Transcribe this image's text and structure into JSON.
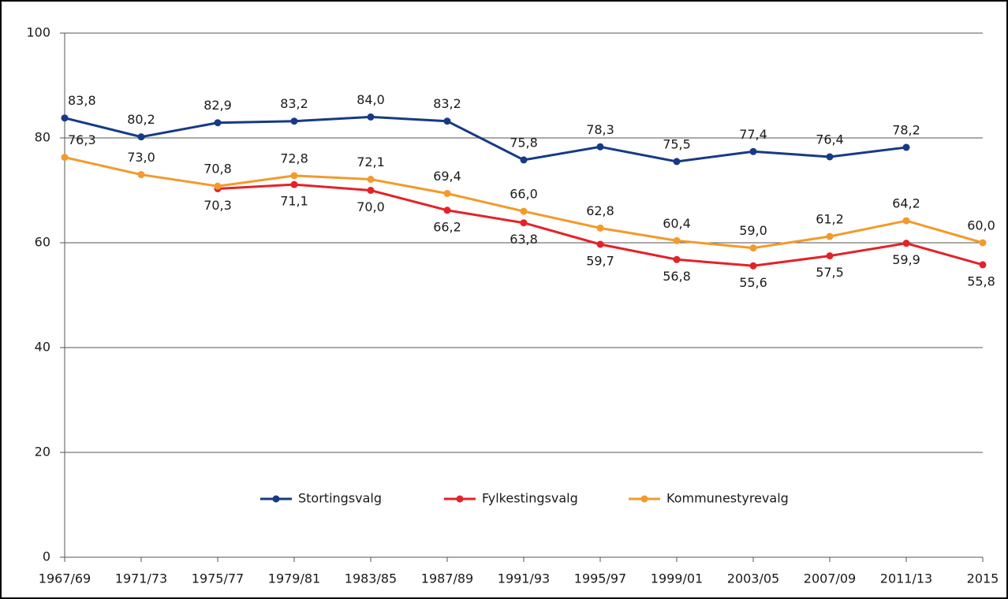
{
  "chart_data": {
    "type": "line",
    "categories": [
      "1967/69",
      "1971/73",
      "1975/77",
      "1979/81",
      "1983/85",
      "1987/89",
      "1991/93",
      "1995/97",
      "1999/01",
      "2003/05",
      "2007/09",
      "2011/13",
      "2015"
    ],
    "series": [
      {
        "name": "Stortingsvalg",
        "color": "#163a86",
        "label_side": "above",
        "values": [
          83.8,
          80.2,
          82.9,
          83.2,
          84.0,
          83.2,
          75.8,
          78.3,
          75.5,
          77.4,
          76.4,
          78.2,
          null
        ],
        "value_labels": [
          "83,8",
          "80,2",
          "82,9",
          "83,2",
          "84,0",
          "83,2",
          "75,8",
          "78,3",
          "75,5",
          "77,4",
          "76,4",
          "78,2",
          null
        ]
      },
      {
        "name": "Fylkestingsvalg",
        "color": "#e42229",
        "label_side": "below",
        "values": [
          null,
          null,
          70.3,
          71.1,
          70.0,
          66.2,
          63.8,
          59.7,
          56.8,
          55.6,
          57.5,
          59.9,
          55.8
        ],
        "value_labels": [
          null,
          null,
          "70,3",
          "71,1",
          "70,0",
          "66,2",
          "63,8",
          "59,7",
          "56,8",
          "55,6",
          "57,5",
          "59,9",
          "55,8"
        ]
      },
      {
        "name": "Kommunestyrevalg",
        "color": "#f39a2c",
        "label_side": "above",
        "values": [
          76.3,
          73.0,
          70.8,
          72.8,
          72.1,
          69.4,
          66.0,
          62.8,
          60.4,
          59.0,
          61.2,
          64.2,
          60.0
        ],
        "value_labels": [
          "76,3",
          "73,0",
          "70,8",
          "72,8",
          "72,1",
          "69,4",
          "66,0",
          "62,8",
          "60,4",
          "59,0",
          "61,2",
          "64,2",
          "60,0"
        ]
      }
    ],
    "ylim": [
      0,
      100
    ],
    "yticks": [
      0,
      20,
      40,
      60,
      80,
      100
    ],
    "grid": true
  }
}
